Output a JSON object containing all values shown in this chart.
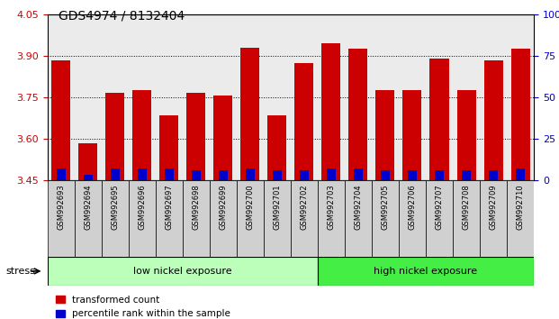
{
  "title": "GDS4974 / 8132404",
  "samples": [
    "GSM992693",
    "GSM992694",
    "GSM992695",
    "GSM992696",
    "GSM992697",
    "GSM992698",
    "GSM992699",
    "GSM992700",
    "GSM992701",
    "GSM992702",
    "GSM992703",
    "GSM992704",
    "GSM992705",
    "GSM992706",
    "GSM992707",
    "GSM992708",
    "GSM992709",
    "GSM992710"
  ],
  "transformed_counts": [
    3.885,
    3.585,
    3.765,
    3.775,
    3.685,
    3.765,
    3.755,
    3.93,
    3.685,
    3.875,
    3.945,
    3.925,
    3.775,
    3.775,
    3.89,
    3.775,
    3.885,
    3.925
  ],
  "percentile_ranks": [
    7,
    3,
    7,
    7,
    7,
    6,
    6,
    7,
    6,
    6,
    7,
    7,
    6,
    6,
    6,
    6,
    6,
    7
  ],
  "ylim_left": [
    3.45,
    4.05
  ],
  "ylim_right": [
    0,
    100
  ],
  "yticks_left": [
    3.45,
    3.6,
    3.75,
    3.9,
    4.05
  ],
  "yticks_right": [
    0,
    25,
    50,
    75,
    100
  ],
  "bar_color_red": "#cc0000",
  "bar_color_blue": "#0000cc",
  "group1_label": "low nickel exposure",
  "group2_label": "high nickel exposure",
  "group1_count": 10,
  "group2_count": 8,
  "group1_color": "#bbffbb",
  "group2_color": "#44ee44",
  "stress_label": "stress",
  "legend1": "transformed count",
  "legend2": "percentile rank within the sample",
  "base_value": 3.45,
  "title_fontsize": 10,
  "tick_fontsize": 8,
  "label_fontsize": 8,
  "bar_width": 0.7,
  "blue_bar_width": 0.35
}
